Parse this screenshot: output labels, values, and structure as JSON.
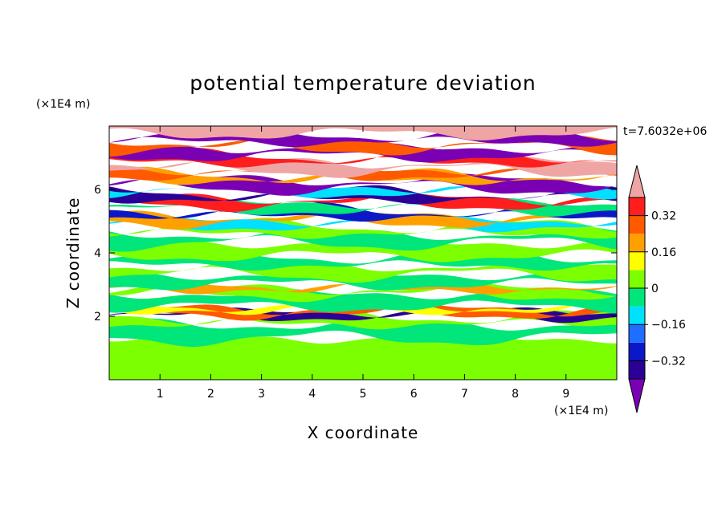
{
  "chart_data": {
    "type": "heatmap",
    "title": "potential temperature deviation",
    "xlabel": "X coordinate",
    "ylabel": "Z coordinate",
    "x_unit": "(×1E4 m)",
    "y_unit": "(×1E4 m)",
    "time_label": "t=7.6032e+06",
    "xlim": [
      0,
      10
    ],
    "ylim": [
      0,
      8
    ],
    "x_ticks": [
      1,
      2,
      3,
      4,
      5,
      6,
      7,
      8,
      9
    ],
    "y_ticks": [
      2,
      4,
      6
    ],
    "colorbar": {
      "levels": [
        -0.4,
        -0.32,
        -0.24,
        -0.16,
        -0.08,
        0,
        0.08,
        0.16,
        0.24,
        0.32,
        0.4
      ],
      "labels": [
        "0.32",
        "0.16",
        "0",
        "−0.16",
        "−0.32"
      ],
      "label_values": [
        0.32,
        0.16,
        0,
        -0.16,
        -0.32
      ],
      "colors": [
        "#7a00b4",
        "#2a0096",
        "#0a18c8",
        "#1e6eff",
        "#00e0ff",
        "#00e67a",
        "#7cff00",
        "#ffff00",
        "#ffa000",
        "#ff5a00",
        "#ff1e1e",
        "#f0a5a5"
      ]
    },
    "bands": [
      {
        "z": [
          0.0,
          1.3
        ],
        "color": "#7cff00"
      },
      {
        "z": [
          1.3,
          1.75
        ],
        "color": "#00e67a"
      },
      {
        "z": [
          1.75,
          2.0
        ],
        "color": "#7cff00"
      },
      {
        "z": [
          2.0,
          2.12
        ],
        "color": "#2a0096"
      },
      {
        "z": [
          2.12,
          2.2
        ],
        "color": "#ff5a00"
      },
      {
        "z": [
          2.2,
          2.3
        ],
        "color": "#ffff00"
      },
      {
        "z": [
          2.3,
          2.7
        ],
        "color": "#00e67a"
      },
      {
        "z": [
          2.7,
          2.85
        ],
        "color": "#7cff00"
      },
      {
        "z": [
          2.85,
          3.0
        ],
        "color": "#ffa000"
      },
      {
        "z": [
          3.0,
          3.3
        ],
        "color": "#00e67a"
      },
      {
        "z": [
          3.3,
          3.6
        ],
        "color": "#7cff00"
      },
      {
        "z": [
          3.6,
          3.9
        ],
        "color": "#00e67a"
      },
      {
        "z": [
          3.9,
          4.3
        ],
        "color": "#7cff00"
      },
      {
        "z": [
          4.3,
          4.6
        ],
        "color": "#00e67a"
      },
      {
        "z": [
          4.6,
          4.85
        ],
        "color": "#7cff00"
      },
      {
        "z": [
          4.85,
          5.0
        ],
        "color": "#00e0ff"
      },
      {
        "z": [
          5.0,
          5.15
        ],
        "color": "#ffa000"
      },
      {
        "z": [
          5.15,
          5.35
        ],
        "color": "#0a18c8"
      },
      {
        "z": [
          5.35,
          5.55
        ],
        "color": "#00e67a"
      },
      {
        "z": [
          5.55,
          5.7
        ],
        "color": "#ff1e1e"
      },
      {
        "z": [
          5.7,
          5.9
        ],
        "color": "#2a0096"
      },
      {
        "z": [
          5.9,
          6.05
        ],
        "color": "#00e0ff"
      },
      {
        "z": [
          6.05,
          6.3
        ],
        "color": "#7a00b4"
      },
      {
        "z": [
          6.3,
          6.45
        ],
        "color": "#ffa000"
      },
      {
        "z": [
          6.45,
          6.6
        ],
        "color": "#ff5a00"
      },
      {
        "z": [
          6.6,
          6.85
        ],
        "color": "#f0a5a5"
      },
      {
        "z": [
          6.85,
          7.05
        ],
        "color": "#ff1e1e"
      },
      {
        "z": [
          7.05,
          7.3
        ],
        "color": "#7a00b4"
      },
      {
        "z": [
          7.3,
          7.5
        ],
        "color": "#ff5a00"
      },
      {
        "z": [
          7.5,
          7.75
        ],
        "color": "#7a00b4"
      },
      {
        "z": [
          7.75,
          8.0
        ],
        "color": "#f0a5a5"
      }
    ]
  }
}
